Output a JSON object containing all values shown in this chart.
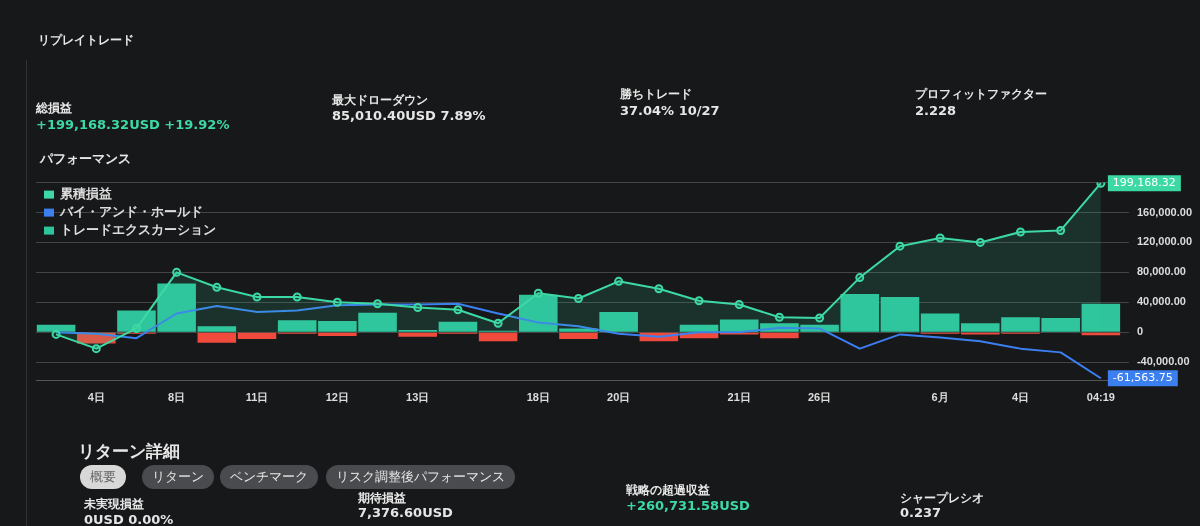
{
  "chart_data": {
    "type": "bar",
    "title": "パフォーマンス",
    "categories": [
      null,
      "4日",
      null,
      "8日",
      null,
      "11日",
      null,
      "12日",
      null,
      "13日",
      null,
      null,
      "18日",
      null,
      "20日",
      null,
      null,
      "21日",
      null,
      "26日",
      null,
      null,
      "6月",
      null,
      "4日",
      null,
      "04:19"
    ],
    "legend": "top left",
    "grid": "y",
    "marker": "circle",
    "ylim": [
      -65000,
      200000
    ],
    "yticks": [
      {
        "value": -40000,
        "label": "-40,000.00"
      },
      {
        "value": 0,
        "label": "0"
      },
      {
        "value": 40000,
        "label": "40,000.00"
      },
      {
        "value": 80000,
        "label": "80,000.00"
      },
      {
        "value": 120000,
        "label": "120,000.00"
      },
      {
        "value": 160000,
        "label": "160,000.00"
      },
      {
        "value": 200000,
        "label": null
      }
    ],
    "series": [
      {
        "name": "累積損益",
        "type": "area",
        "color": "#3dd9a4",
        "values": [
          -3000,
          -22000,
          5000,
          80000,
          60000,
          47000,
          47000,
          40000,
          38000,
          33000,
          30000,
          12000,
          52000,
          45000,
          68000,
          58000,
          42000,
          37000,
          20000,
          19000,
          73000,
          115000,
          126000,
          120000,
          134000,
          136000,
          199168.32
        ],
        "value_labels": [
          null,
          null,
          null,
          null,
          null,
          null,
          null,
          null,
          null,
          null,
          null,
          null,
          null,
          null,
          null,
          null,
          null,
          null,
          null,
          null,
          null,
          null,
          null,
          null,
          null,
          null,
          "199,168.32"
        ]
      },
      {
        "name": "バイ・アンド・ホールド",
        "type": "line",
        "color": "#3b7ff0",
        "marker": "none",
        "values": [
          0,
          -2000,
          -8000,
          25000,
          35000,
          27000,
          29000,
          36000,
          37000,
          37000,
          38000,
          25000,
          13000,
          8000,
          -2000,
          -6000,
          0,
          0,
          6000,
          5000,
          -22000,
          -3000,
          -7000,
          -12000,
          -22000,
          -27000,
          -61563.75
        ],
        "value_labels": [
          null,
          null,
          null,
          null,
          null,
          null,
          null,
          null,
          null,
          null,
          null,
          null,
          null,
          null,
          null,
          null,
          null,
          null,
          null,
          null,
          null,
          null,
          null,
          null,
          null,
          null,
          "-61,563.75"
        ]
      },
      {
        "name": "トレードエクスカーション",
        "color": "#2fc49c",
        "values": [
          10000,
          null,
          29000,
          65000,
          8000,
          null,
          16000,
          15000,
          26000,
          3000,
          14000,
          2000,
          50000,
          5000,
          27000,
          null,
          10000,
          17000,
          12000,
          10000,
          51000,
          47000,
          25000,
          12000,
          20000,
          19000,
          38000
        ]
      },
      {
        "color": "#ef4a3c",
        "values": [
          null,
          -15000,
          -2000,
          null,
          -14000,
          -9000,
          -2000,
          -5000,
          null,
          -6000,
          -2000,
          -12000,
          null,
          -9000,
          null,
          -12000,
          -8000,
          -3000,
          -8000,
          null,
          null,
          null,
          -2000,
          -3000,
          -2000,
          null,
          -4000
        ]
      }
    ],
    "annotations": [
      "リプレイトレード",
      "総損益",
      "+199,168.32USD +19.92%",
      "最大ドローダウン",
      "85,010.40USD 7.89%",
      "勝ちトレード",
      "37.04% 10/27",
      "プロフィットファクター",
      "2.228",
      "リターン詳細",
      "概要",
      "リターン",
      "ベンチマーク",
      "リスク調整後パフォーマンス",
      "未実現損益",
      "0USD 0.00%",
      "期待損益",
      "7,376.60USD",
      "戦略の超過収益",
      "+260,731.58USD",
      "シャープレシオ",
      "0.237"
    ]
  }
}
